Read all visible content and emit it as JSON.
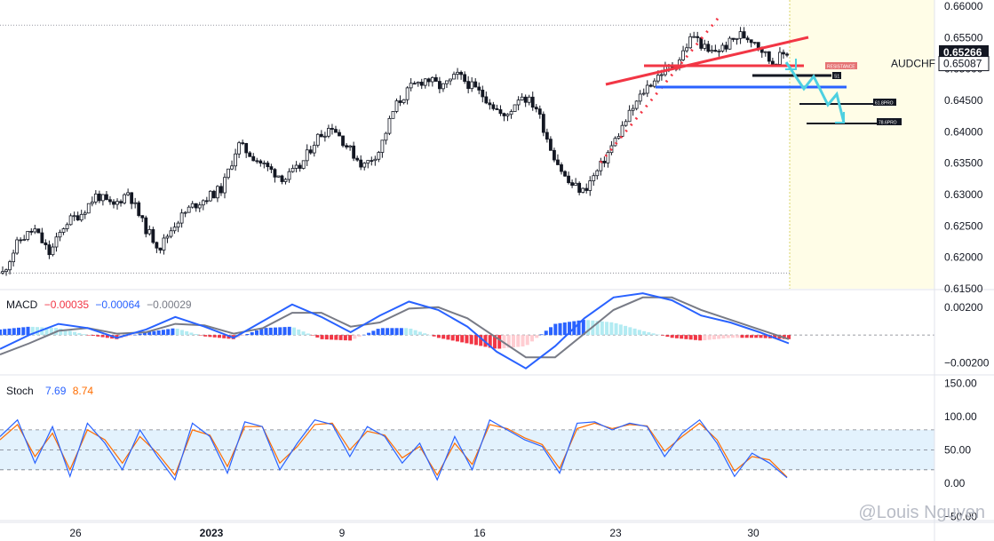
{
  "colors": {
    "up": "#ffffff",
    "down": "#131722",
    "macd_line": "#2962ff",
    "signal_line": "#787b86",
    "hist_pos_strong": "#2962ff",
    "hist_pos_weak": "#b2ebf2",
    "hist_neg_strong": "#f23645",
    "hist_neg_weak": "#ffcdd2",
    "stoch_k": "#2962ff",
    "stoch_d": "#ff6d00",
    "stoch_band": "#e3f2fd",
    "forecast_bg": "#fffde7",
    "resistance_line": "#f23645",
    "support_blue": "#2962ff",
    "arrow_teal": "#4dd0e1",
    "price_label_bg": "#131722"
  },
  "symbol_label": "AUDCHF",
  "watermark": "@Louis Nguyen",
  "main": {
    "y_ticks": [
      "0.66000",
      "0.65500",
      "0.65000",
      "0.64500",
      "0.64000",
      "0.63500",
      "0.63000",
      "0.62500",
      "0.62000",
      "0.61500"
    ],
    "current_price": "0.65266",
    "prev_price": "0.65087",
    "annotations": [
      "RESISTANCE",
      "S1",
      "61.8PRO",
      "78.6PRO"
    ]
  },
  "macd": {
    "name": "MACD",
    "v1": "−0.00035",
    "v2": "−0.00064",
    "v3": "−0.00029",
    "y_ticks": [
      "0.00200",
      "−0.00200"
    ]
  },
  "stoch": {
    "name": "Stoch",
    "k": "7.69",
    "d": "8.74",
    "y_ticks": [
      "150.00",
      "100.00",
      "50.00",
      "0.00",
      "−50.00"
    ]
  },
  "x_ticks": [
    "26",
    "2023",
    "9",
    "16",
    "23",
    "30"
  ],
  "chart_data": [
    {
      "type": "candlestick",
      "symbol": "AUDCHF",
      "ylim": [
        0.615,
        0.661
      ],
      "close_path": [
        0.6175,
        0.6225,
        0.6245,
        0.6205,
        0.6255,
        0.627,
        0.63,
        0.628,
        0.6305,
        0.625,
        0.6215,
        0.6255,
        0.628,
        0.6295,
        0.631,
        0.638,
        0.636,
        0.634,
        0.6325,
        0.6345,
        0.639,
        0.641,
        0.6375,
        0.6345,
        0.637,
        0.644,
        0.647,
        0.6485,
        0.647,
        0.649,
        0.647,
        0.645,
        0.642,
        0.646,
        0.644,
        0.637,
        0.632,
        0.6305,
        0.634,
        0.6385,
        0.643,
        0.647,
        0.6495,
        0.651,
        0.6555,
        0.6525,
        0.6535,
        0.6555,
        0.6545,
        0.651,
        0.6527
      ],
      "current": 0.65266
    },
    {
      "type": "line",
      "name": "MACD",
      "ylim": [
        -0.0028,
        0.0032
      ],
      "series": [
        {
          "name": "MACD",
          "values": [
            -0.001,
            0.0,
            0.0008,
            0.0005,
            -0.0002,
            0.0004,
            0.0013,
            0.0006,
            -0.0002,
            0.001,
            0.0022,
            0.0013,
            0.0002,
            0.0014,
            0.0024,
            0.0018,
            0.0006,
            -0.0012,
            -0.0024,
            -0.0008,
            0.0012,
            0.0027,
            0.003,
            0.0025,
            0.0014,
            0.0009,
            0.0002,
            -0.0006
          ]
        },
        {
          "name": "Signal",
          "values": [
            -0.0014,
            -0.0006,
            0.0003,
            0.0005,
            0.0001,
            0.0002,
            0.0008,
            0.0007,
            0.0001,
            0.0005,
            0.0016,
            0.0016,
            0.0006,
            0.0009,
            0.0019,
            0.002,
            0.0012,
            -0.0002,
            -0.0016,
            -0.0016,
            0.0001,
            0.0018,
            0.0027,
            0.0027,
            0.0018,
            0.0011,
            0.0004,
            -0.0003
          ]
        }
      ]
    },
    {
      "type": "line",
      "name": "Stoch",
      "ylim": [
        -55,
        160
      ],
      "bands": [
        20,
        50,
        80
      ],
      "series": [
        {
          "name": "K",
          "values": [
            70,
            95,
            30,
            85,
            10,
            90,
            60,
            20,
            80,
            40,
            5,
            90,
            70,
            15,
            92,
            85,
            20,
            60,
            95,
            88,
            40,
            85,
            70,
            30,
            60,
            5,
            70,
            20,
            95,
            80,
            65,
            55,
            15,
            90,
            92,
            80,
            90,
            85,
            40,
            75,
            95,
            60,
            10,
            45,
            30,
            8
          ]
        },
        {
          "name": "D",
          "values": [
            65,
            88,
            40,
            75,
            20,
            80,
            65,
            30,
            70,
            45,
            12,
            80,
            72,
            25,
            85,
            85,
            30,
            55,
            88,
            90,
            50,
            78,
            72,
            38,
            55,
            12,
            60,
            28,
            88,
            82,
            68,
            58,
            22,
            82,
            90,
            82,
            88,
            86,
            48,
            70,
            90,
            65,
            18,
            40,
            35,
            9
          ]
        }
      ]
    }
  ]
}
